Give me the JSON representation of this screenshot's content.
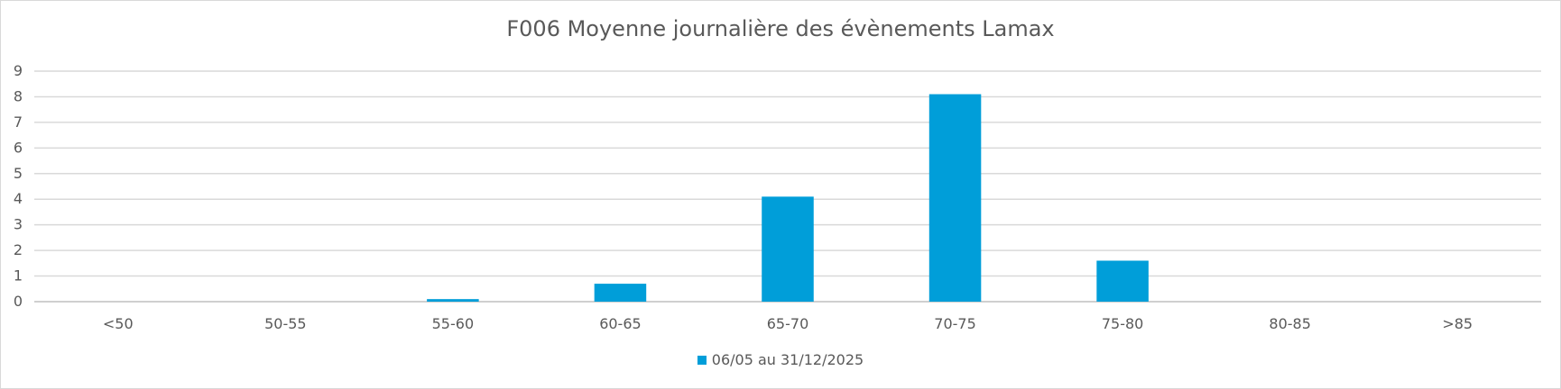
{
  "chart_data": {
    "type": "bar",
    "title": "F006 Moyenne journalière des évènements Lamax",
    "xlabel": "",
    "ylabel": "",
    "categories": [
      "<50",
      "50-55",
      "55-60",
      "60-65",
      "65-70",
      "70-75",
      "75-80",
      "80-85",
      ">85"
    ],
    "series": [
      {
        "name": "06/05 au 31/12/2025",
        "values": [
          0,
          0,
          0.1,
          0.7,
          4.1,
          8.1,
          1.6,
          0,
          0
        ],
        "color": "#009ED9"
      }
    ],
    "ylim": [
      0,
      9
    ],
    "yticks": [
      0,
      1,
      2,
      3,
      4,
      5,
      6,
      7,
      8,
      9
    ],
    "grid": "horizontal",
    "legend_position": "bottom"
  }
}
